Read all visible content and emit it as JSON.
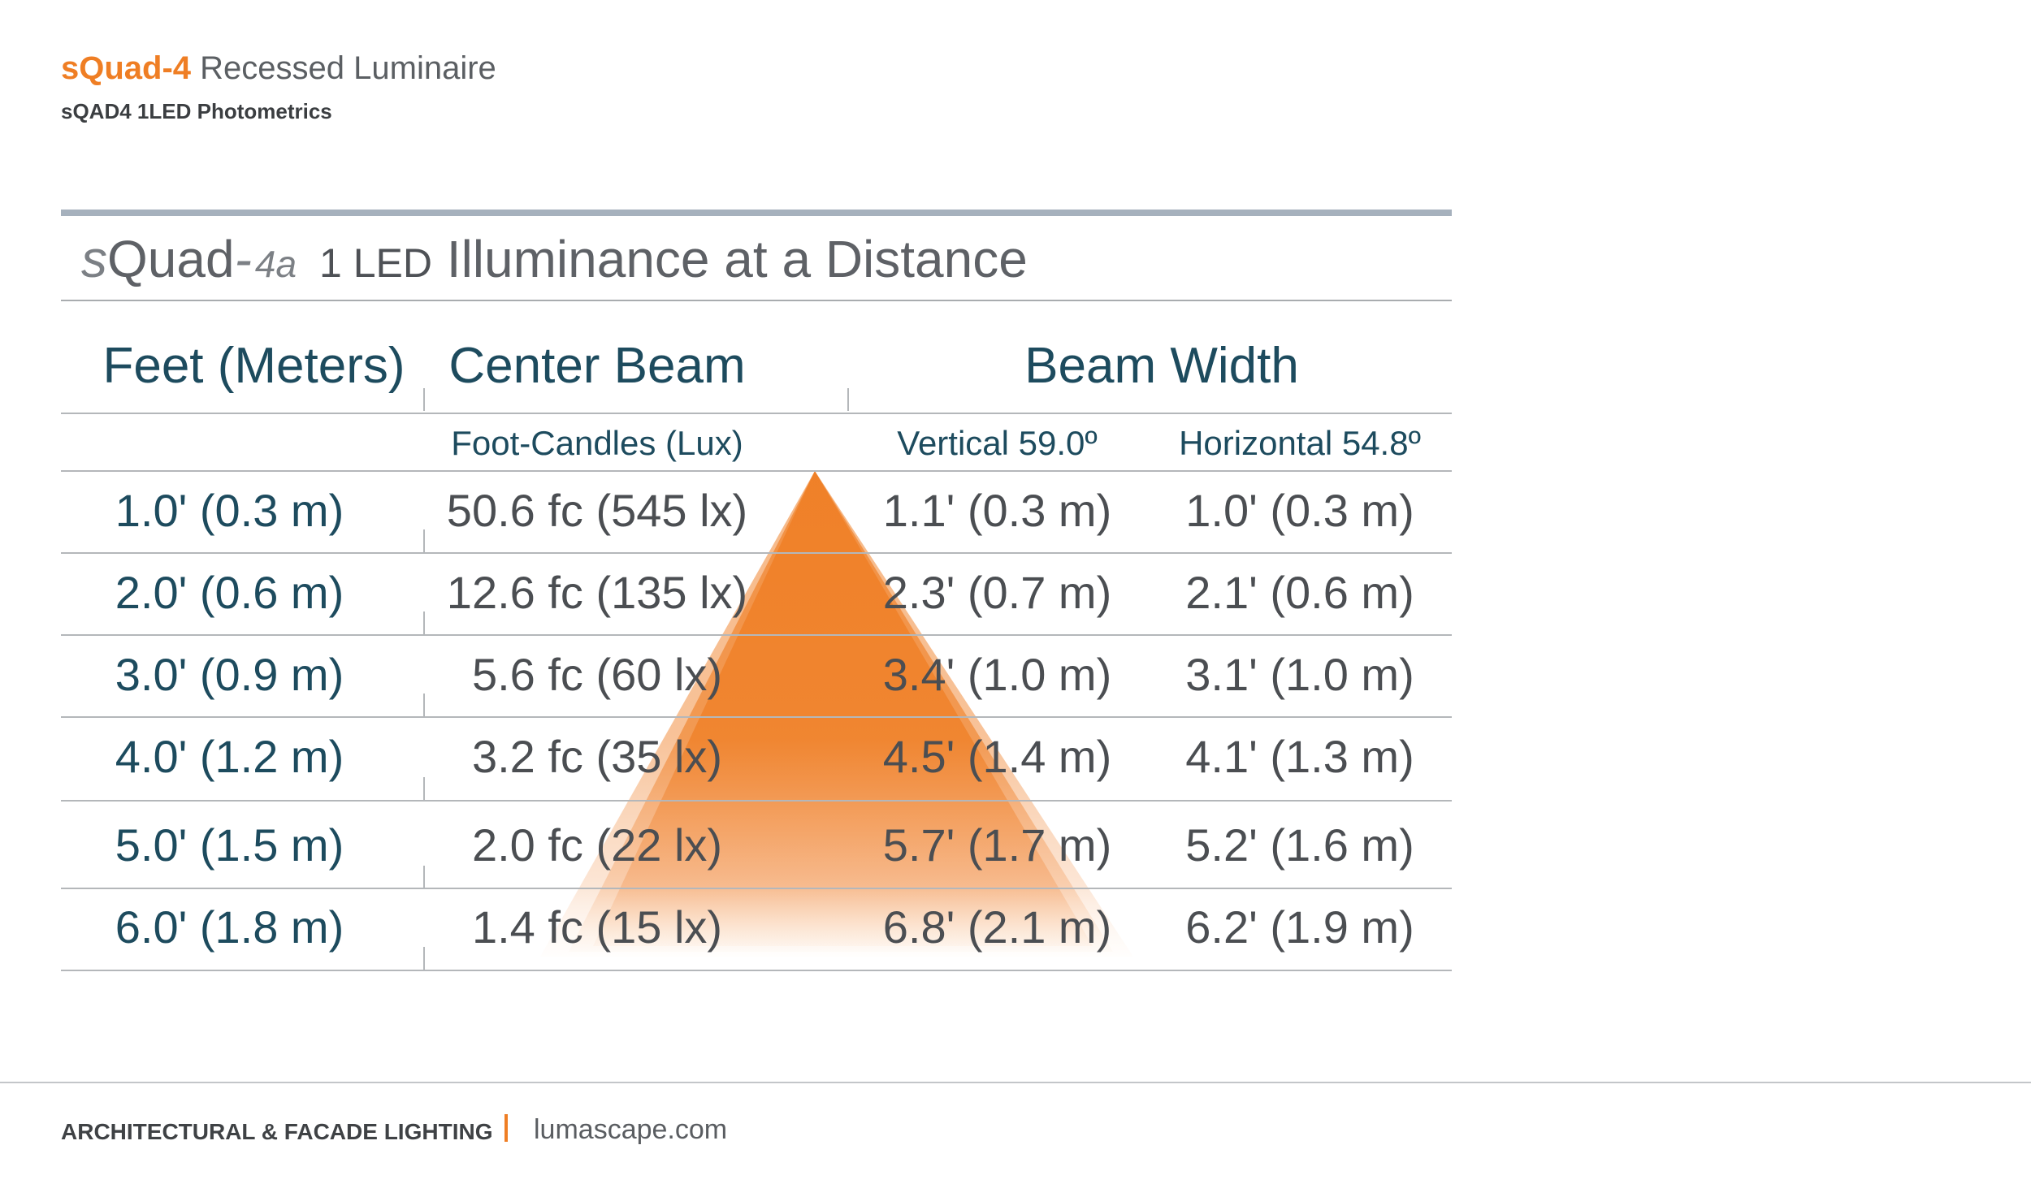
{
  "colors": {
    "accent": "#ef7e24",
    "heading": "#1d4b5e",
    "text": "#4b4e52",
    "rule": "#a6b1bd"
  },
  "header": {
    "brand": "sQuad-4",
    "product": "Recessed Luminaire",
    "subtitle": "sQAD4 1LED Photometrics"
  },
  "panel": {
    "title_s": "s",
    "title_quad": "Quad",
    "title_dash": "-",
    "title_model": "4a",
    "title_led": "1 LED",
    "title_rest": "Illuminance at a Distance"
  },
  "table": {
    "headers": {
      "distance": "Feet (Meters)",
      "center_beam": "Center Beam",
      "beam_width": "Beam Width"
    },
    "subheaders": {
      "center_units": "Foot-Candles (Lux)",
      "vertical": "Vertical 59.0º",
      "horizontal": "Horizontal 54.8º"
    },
    "rows": [
      {
        "distance": "1.0' (0.3 m)",
        "center": "50.6 fc (545 lx)",
        "vertical": "1.1' (0.3 m)",
        "horizontal": "1.0' (0.3 m)"
      },
      {
        "distance": "2.0' (0.6 m)",
        "center": "12.6 fc (135 lx)",
        "vertical": "2.3' (0.7 m)",
        "horizontal": "2.1' (0.6 m)"
      },
      {
        "distance": "3.0' (0.9 m)",
        "center": "5.6 fc (60 lx)",
        "vertical": "3.4' (1.0 m)",
        "horizontal": "3.1' (1.0 m)"
      },
      {
        "distance": "4.0' (1.2 m)",
        "center": "3.2 fc (35 lx)",
        "vertical": "4.5' (1.4 m)",
        "horizontal": "4.1' (1.3 m)"
      },
      {
        "distance": "5.0' (1.5 m)",
        "center": "2.0 fc (22 lx)",
        "vertical": "5.7' (1.7 m)",
        "horizontal": "5.2' (1.6 m)"
      },
      {
        "distance": "6.0' (1.8 m)",
        "center": "1.4 fc (15 lx)",
        "vertical": "6.8' (2.1 m)",
        "horizontal": "6.2' (1.9 m)"
      }
    ]
  },
  "footer": {
    "left": "ARCHITECTURAL & FACADE LIGHTING",
    "right": "lumascape.com"
  }
}
